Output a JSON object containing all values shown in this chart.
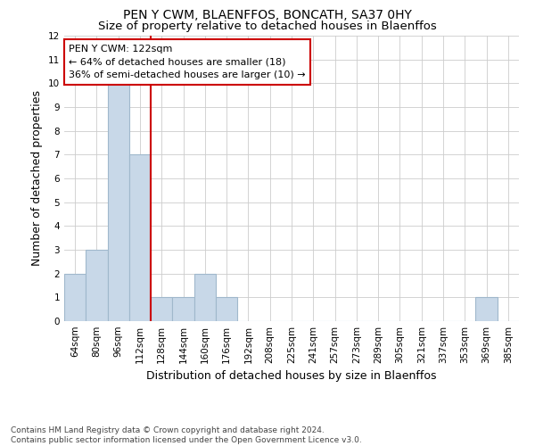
{
  "title1": "PEN Y CWM, BLAENFFOS, BONCATH, SA37 0HY",
  "title2": "Size of property relative to detached houses in Blaenffos",
  "xlabel": "Distribution of detached houses by size in Blaenffos",
  "ylabel": "Number of detached properties",
  "categories": [
    "64sqm",
    "80sqm",
    "96sqm",
    "112sqm",
    "128sqm",
    "144sqm",
    "160sqm",
    "176sqm",
    "192sqm",
    "208sqm",
    "225sqm",
    "241sqm",
    "257sqm",
    "273sqm",
    "289sqm",
    "305sqm",
    "321sqm",
    "337sqm",
    "353sqm",
    "369sqm",
    "385sqm"
  ],
  "values": [
    2,
    3,
    10,
    7,
    1,
    1,
    2,
    1,
    0,
    0,
    0,
    0,
    0,
    0,
    0,
    0,
    0,
    0,
    0,
    1,
    0
  ],
  "bar_color": "#c8d8e8",
  "bar_edge_color": "#a0b8cc",
  "vline_color": "#cc0000",
  "annotation_box_text": "PEN Y CWM: 122sqm\n← 64% of detached houses are smaller (18)\n36% of semi-detached houses are larger (10) →",
  "annotation_box_color": "#cc0000",
  "annotation_box_bg": "white",
  "ylim": [
    0,
    12
  ],
  "yticks": [
    0,
    1,
    2,
    3,
    4,
    5,
    6,
    7,
    8,
    9,
    10,
    11,
    12
  ],
  "footnote": "Contains HM Land Registry data © Crown copyright and database right 2024.\nContains public sector information licensed under the Open Government Licence v3.0.",
  "bg_color": "white",
  "grid_color": "#cccccc",
  "title1_fontsize": 10,
  "title2_fontsize": 9.5,
  "xlabel_fontsize": 9,
  "ylabel_fontsize": 9,
  "footnote_fontsize": 6.5,
  "tick_fontsize": 7.5,
  "ann_fontsize": 8
}
